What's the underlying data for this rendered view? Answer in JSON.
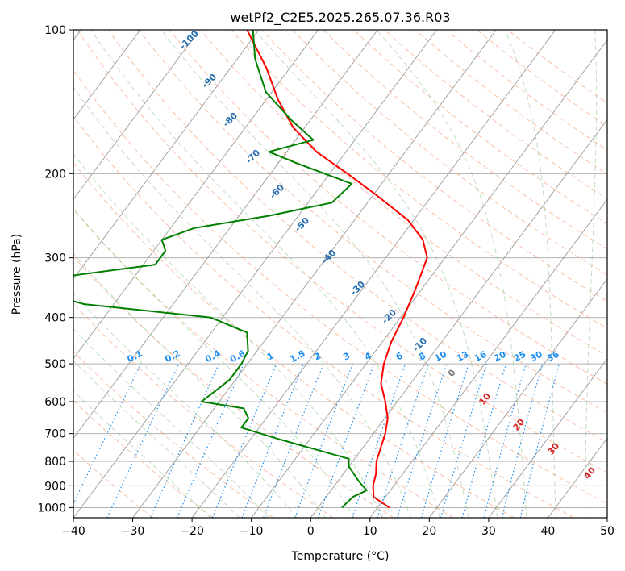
{
  "chart_data": {
    "type": "line",
    "title": "wetPf2_C2E5.2025.265.07.36.R03",
    "xlabel": "Temperature (°C)",
    "ylabel": "Pressure (hPa)",
    "xlim": [
      -40,
      50
    ],
    "ylim": [
      1050,
      100
    ],
    "y_scale": "log",
    "skew": "skew-T",
    "grid": true,
    "x_ticks": [
      -40,
      -30,
      -20,
      -10,
      0,
      10,
      20,
      30,
      40,
      50
    ],
    "y_ticks": [
      100,
      200,
      300,
      400,
      500,
      600,
      700,
      800,
      900,
      1000
    ],
    "series": [
      {
        "color": "#ff0000",
        "points": [
          [
            12,
            1000
          ],
          [
            8,
            950
          ],
          [
            6.5,
            900
          ],
          [
            5.5,
            850
          ],
          [
            4,
            800
          ],
          [
            2,
            700
          ],
          [
            0.5,
            650
          ],
          [
            -2,
            600
          ],
          [
            -5,
            550
          ],
          [
            -7,
            500
          ],
          [
            -8.5,
            450
          ],
          [
            -9.5,
            400
          ],
          [
            -11,
            350
          ],
          [
            -13,
            300
          ],
          [
            -16,
            275
          ],
          [
            -21,
            250
          ],
          [
            -30,
            220
          ],
          [
            -37,
            200
          ],
          [
            -45,
            180
          ],
          [
            -52,
            160
          ],
          [
            -58,
            140
          ],
          [
            -64,
            120
          ],
          [
            -72,
            100
          ]
        ]
      },
      {
        "color": "#008000",
        "points": [
          [
            4,
            1000
          ],
          [
            4.5,
            950
          ],
          [
            6,
            920
          ],
          [
            3.5,
            880
          ],
          [
            0,
            820
          ],
          [
            -1,
            790
          ],
          [
            -15,
            720
          ],
          [
            -23,
            680
          ],
          [
            -23,
            650
          ],
          [
            -25,
            620
          ],
          [
            -33,
            600
          ],
          [
            -32,
            570
          ],
          [
            -31,
            540
          ],
          [
            -31,
            500
          ],
          [
            -31.5,
            470
          ],
          [
            -34,
            430
          ],
          [
            -42,
            400
          ],
          [
            -65,
            375
          ],
          [
            -80,
            340
          ],
          [
            -58,
            310
          ],
          [
            -58,
            290
          ],
          [
            -60,
            275
          ],
          [
            -56,
            260
          ],
          [
            -45,
            245
          ],
          [
            -36,
            230
          ],
          [
            -35,
            210
          ],
          [
            -47,
            190
          ],
          [
            -53,
            180
          ],
          [
            -47,
            170
          ],
          [
            -53,
            155
          ],
          [
            -61,
            135
          ],
          [
            -67,
            115
          ],
          [
            -71,
            100
          ]
        ]
      }
    ],
    "dry_adiabat_labels": [
      -100,
      -90,
      -80,
      -70,
      -60,
      -50,
      -40,
      -30,
      -20,
      -10
    ],
    "moist_adiabat_labels": [
      0,
      10,
      20,
      30,
      40
    ],
    "mixing_ratio_labels": [
      "0.1",
      "0.2",
      "0.4",
      "0.6",
      "1",
      "1.5",
      "2",
      "3",
      "4",
      "6",
      "8",
      "10",
      "13",
      "16",
      "20",
      "25",
      "30",
      "36"
    ],
    "colors": {
      "temperature": "#ff0000",
      "dewpoint": "#008000",
      "isotherm": "#9a9a9a",
      "dry_adiabat": "#f4a582",
      "moist_adiabat": "#7fbf7f",
      "mixing_ratio": "#1f8ef1"
    }
  }
}
